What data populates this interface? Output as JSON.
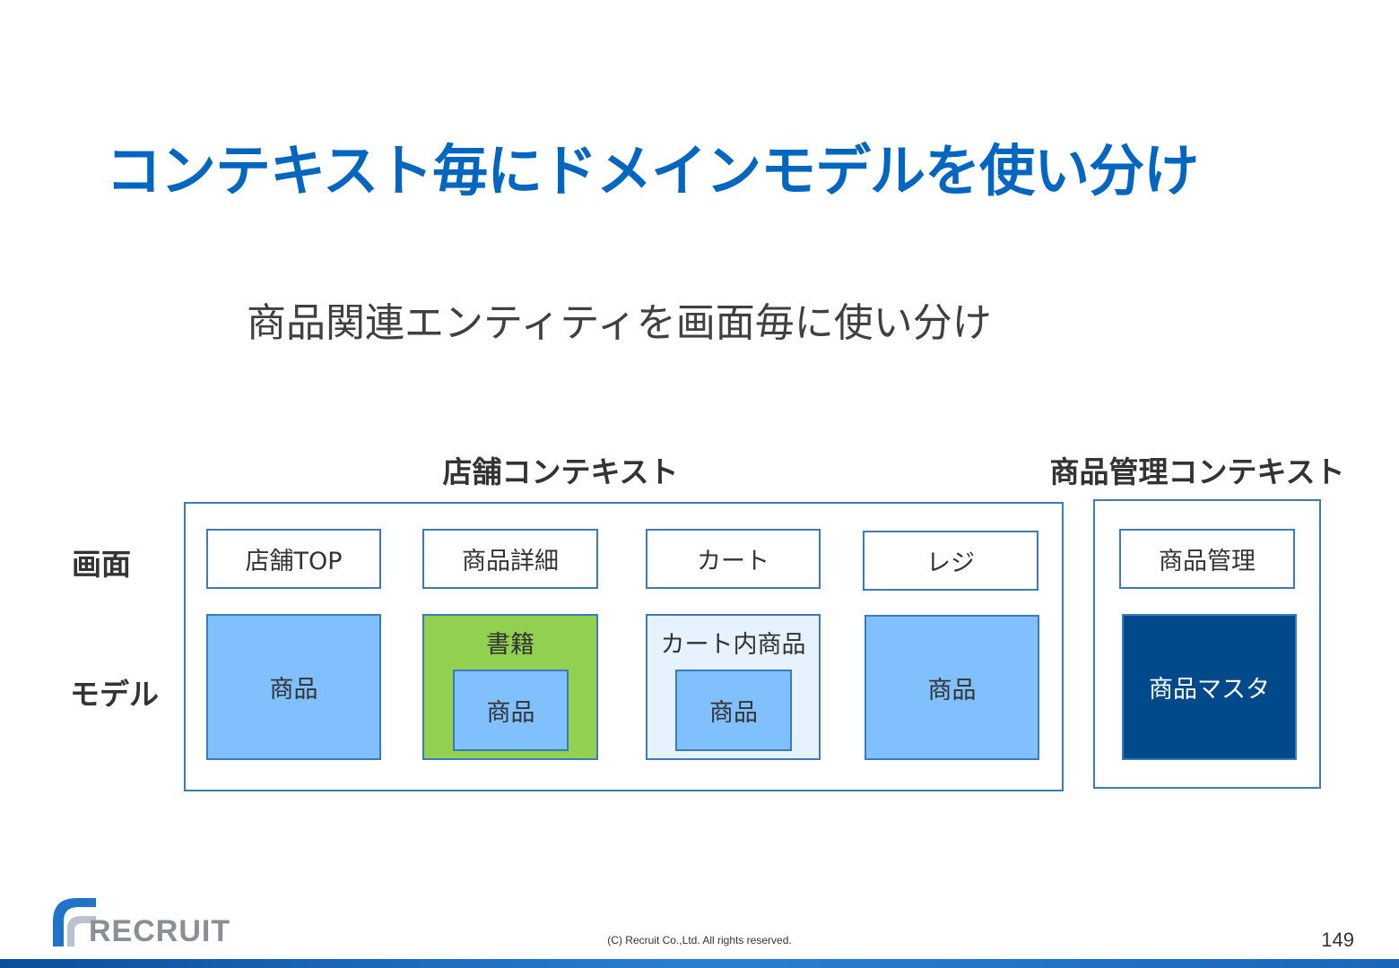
{
  "title": "コンテキスト毎にドメインモデルを使い分け",
  "subtitle": "商品関連エンティティを画面毎に使い分け",
  "row_labels": {
    "screen": "画面",
    "model": "モデル"
  },
  "store_context": {
    "label": "店舗コンテキスト",
    "columns": [
      {
        "screen": "店舗TOP",
        "model": "商品"
      },
      {
        "screen": "商品詳細",
        "model_outer": "書籍",
        "model_inner": "商品"
      },
      {
        "screen": "カート",
        "model_outer": "カート内商品",
        "model_inner": "商品"
      },
      {
        "screen": "レジ",
        "model": "商品"
      }
    ]
  },
  "product_mgmt_context": {
    "label": "商品管理コンテキスト",
    "screen": "商品管理",
    "model": "商品マスタ"
  },
  "footer": {
    "logo_text": "RECRUIT",
    "copyright": "(C) Recruit Co.,Ltd. All rights reserved.",
    "page_number": "149"
  },
  "colors": {
    "title": "#0066bf",
    "frame_border": "#3d7ab8",
    "model_light": "#80c0ff",
    "model_green": "#92d050",
    "model_pale": "#e6f2ff",
    "model_dark": "#004a8c"
  }
}
